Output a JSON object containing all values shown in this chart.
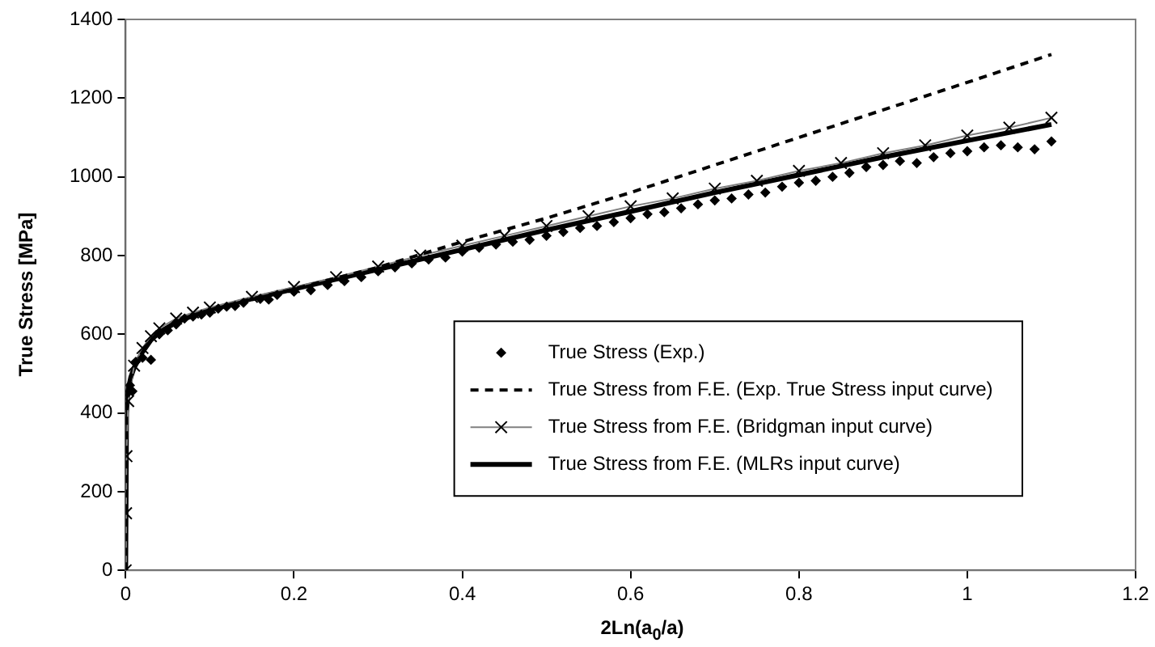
{
  "chart_data": {
    "type": "scatter",
    "xlabel": "2Ln(a$_{0}$/a)",
    "ylabel": "True Stress [MPa]",
    "xlim": [
      0,
      1.2
    ],
    "xticks": [
      0,
      0.2,
      0.4,
      0.6,
      0.8,
      1,
      1.2
    ],
    "ylim": [
      0,
      1400
    ],
    "yticks": [
      0,
      200,
      400,
      600,
      800,
      1000,
      1200,
      1400
    ],
    "grid": false,
    "legend": "bottom right",
    "series": [
      {
        "name": "True Stress (Exp.)",
        "type": "scatter",
        "marker": "diamond",
        "color": "#000000",
        "x": [
          0.002,
          0.005,
          0.008,
          0.012,
          0.02,
          0.03,
          0.04,
          0.05,
          0.06,
          0.07,
          0.08,
          0.09,
          0.1,
          0.11,
          0.12,
          0.13,
          0.14,
          0.16,
          0.17,
          0.18,
          0.2,
          0.22,
          0.24,
          0.26,
          0.28,
          0.3,
          0.32,
          0.34,
          0.36,
          0.38,
          0.4,
          0.42,
          0.44,
          0.46,
          0.48,
          0.5,
          0.52,
          0.54,
          0.56,
          0.58,
          0.6,
          0.62,
          0.64,
          0.66,
          0.68,
          0.7,
          0.72,
          0.74,
          0.76,
          0.78,
          0.8,
          0.82,
          0.84,
          0.86,
          0.88,
          0.9,
          0.92,
          0.94,
          0.96,
          0.98,
          1.0,
          1.02,
          1.04,
          1.06,
          1.08,
          1.1
        ],
        "values": [
          450,
          470,
          455,
          530,
          540,
          535,
          600,
          610,
          625,
          640,
          645,
          650,
          655,
          665,
          670,
          672,
          680,
          690,
          688,
          700,
          708,
          712,
          725,
          735,
          745,
          760,
          770,
          780,
          790,
          795,
          810,
          820,
          828,
          835,
          840,
          850,
          860,
          870,
          875,
          885,
          895,
          905,
          910,
          920,
          930,
          940,
          945,
          955,
          960,
          975,
          985,
          990,
          1000,
          1010,
          1025,
          1030,
          1040,
          1035,
          1050,
          1060,
          1065,
          1075,
          1080,
          1075,
          1070,
          1090
        ]
      },
      {
        "name": "True Stress from F.E. (Exp. True Stress input curve)",
        "type": "line",
        "marker": "none",
        "line_style": "dashed",
        "color": "#000000",
        "x": [
          0,
          0.001,
          0.003,
          0.006,
          0.01,
          0.02,
          0.03,
          0.04,
          0.06,
          0.08,
          0.1,
          0.15,
          0.2,
          0.3,
          0.4,
          0.5,
          0.6,
          0.7,
          0.8,
          0.9,
          1.0,
          1.1
        ],
        "values": [
          0,
          400,
          460,
          490,
          515,
          555,
          585,
          605,
          630,
          648,
          662,
          690,
          715,
          770,
          835,
          895,
          960,
          1030,
          1100,
          1170,
          1240,
          1311
        ]
      },
      {
        "name": "True Stress from F.E. (Bridgman input curve)",
        "type": "line",
        "marker": "cross",
        "line_style": "solid",
        "color": "#808080",
        "x": [
          0,
          0.0005,
          0.001,
          0.003,
          0.01,
          0.02,
          0.03,
          0.04,
          0.06,
          0.08,
          0.1,
          0.15,
          0.2,
          0.25,
          0.3,
          0.35,
          0.4,
          0.45,
          0.5,
          0.55,
          0.6,
          0.65,
          0.7,
          0.75,
          0.8,
          0.85,
          0.9,
          0.95,
          1.0,
          1.05,
          1.1
        ],
        "values": [
          0,
          145,
          290,
          430,
          520,
          565,
          595,
          615,
          640,
          655,
          668,
          695,
          720,
          745,
          772,
          800,
          825,
          850,
          875,
          900,
          925,
          945,
          970,
          990,
          1015,
          1035,
          1060,
          1080,
          1105,
          1125,
          1150
        ]
      },
      {
        "name": "True Stress from F.E. (MLRs input curve)",
        "type": "line",
        "marker": "none",
        "line_style": "solid",
        "color": "#000000",
        "x": [
          0,
          0.001,
          0.003,
          0.006,
          0.01,
          0.02,
          0.03,
          0.04,
          0.06,
          0.08,
          0.1,
          0.15,
          0.2,
          0.3,
          0.4,
          0.5,
          0.6,
          0.7,
          0.8,
          0.9,
          1.0,
          1.1
        ],
        "values": [
          0,
          400,
          460,
          490,
          515,
          555,
          585,
          605,
          630,
          648,
          662,
          690,
          715,
          765,
          815,
          865,
          912,
          960,
          1005,
          1050,
          1092,
          1133
        ]
      }
    ]
  }
}
